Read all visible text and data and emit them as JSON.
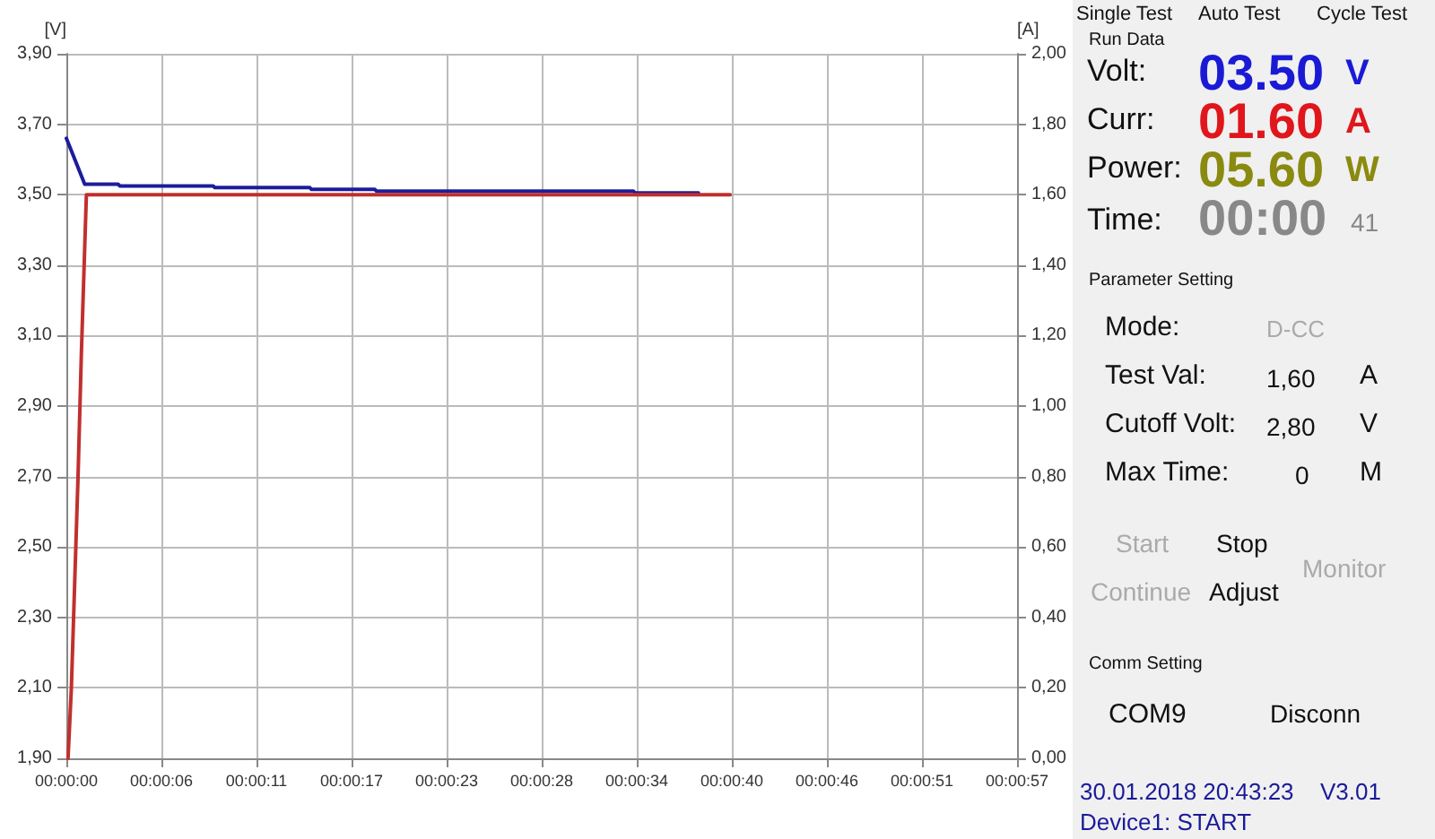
{
  "chart_data": [
    {
      "type": "line",
      "ylabel": "[V]",
      "y2label": "[A]",
      "xlim": [
        0,
        57
      ],
      "xticks": [
        {
          "value": 0,
          "label": "00:00:00"
        },
        {
          "value": 5.7,
          "label": "00:00:06"
        },
        {
          "value": 11.4,
          "label": "00:00:11"
        },
        {
          "value": 17.1,
          "label": "00:00:17"
        },
        {
          "value": 22.8,
          "label": "00:00:23"
        },
        {
          "value": 28.5,
          "label": "00:00:28"
        },
        {
          "value": 34.2,
          "label": "00:00:34"
        },
        {
          "value": 39.9,
          "label": "00:00:40"
        },
        {
          "value": 45.6,
          "label": "00:00:46"
        },
        {
          "value": 51.3,
          "label": "00:00:51"
        },
        {
          "value": 57,
          "label": "00:00:57"
        }
      ],
      "ylim": [
        1.9,
        3.9
      ],
      "yticks": [
        {
          "value": 1.9,
          "label": "1,90"
        },
        {
          "value": 2.1,
          "label": "2,10"
        },
        {
          "value": 2.3,
          "label": "2,30"
        },
        {
          "value": 2.5,
          "label": "2,50"
        },
        {
          "value": 2.7,
          "label": "2,70"
        },
        {
          "value": 2.9,
          "label": "2,90"
        },
        {
          "value": 3.1,
          "label": "3,10"
        },
        {
          "value": 3.3,
          "label": "3,30"
        },
        {
          "value": 3.5,
          "label": "3,50"
        },
        {
          "value": 3.7,
          "label": "3,70"
        },
        {
          "value": 3.9,
          "label": "3,90"
        }
      ],
      "y2lim": [
        0,
        2
      ],
      "y2ticks": [
        {
          "value": 0,
          "label": "0,00"
        },
        {
          "value": 0.2,
          "label": "0,20"
        },
        {
          "value": 0.4,
          "label": "0,40"
        },
        {
          "value": 0.6,
          "label": "0,60"
        },
        {
          "value": 0.8,
          "label": "0,80"
        },
        {
          "value": 1,
          "label": "1,00"
        },
        {
          "value": 1.2,
          "label": "1,20"
        },
        {
          "value": 1.4,
          "label": "1,40"
        },
        {
          "value": 1.6,
          "label": "1,60"
        },
        {
          "value": 1.8,
          "label": "1,80"
        },
        {
          "value": 2,
          "label": "2,00"
        }
      ],
      "grid": true,
      "marker": "none",
      "series": [
        {
          "color": "#1c1c9c",
          "x": [
            0,
            1.1,
            3.1,
            3.2,
            8.8,
            8.9,
            14.6,
            14.7,
            18.5,
            18.6,
            34.0,
            34.1,
            37.9
          ],
          "values": [
            3.66,
            3.53,
            3.53,
            3.525,
            3.525,
            3.52,
            3.52,
            3.515,
            3.515,
            3.51,
            3.51,
            3.505,
            3.505
          ]
        },
        {
          "color": "#c0302e",
          "axis": "y2",
          "x": [
            0.1,
            0.3,
            0.5,
            0.7,
            0.9,
            1.1,
            1.2,
            39.8
          ],
          "values": [
            0,
            0.2,
            0.5,
            0.8,
            1.15,
            1.45,
            1.6,
            1.6
          ]
        }
      ]
    },
    {
      "type": "other",
      "annotations": [
        "Single Test",
        "Auto Test",
        "Cycle Test",
        "Run Data",
        "Volt:",
        "03.50",
        "V",
        "Curr:",
        "01.60",
        "A",
        "Power:",
        "05.60",
        "W",
        "Time:",
        "00:00",
        "41",
        "Parameter Setting",
        "Mode:",
        "D-CC",
        "Test Val:",
        "1,60",
        "A",
        "Cutoff Volt:",
        "2,80",
        "V",
        "Max Time:",
        "0",
        "M",
        "Start",
        "Stop",
        "Continue",
        "Adjust",
        "Monitor",
        "Comm Setting",
        "COM9",
        "Disconn",
        "30.01.2018 20:43:23",
        "V3.01",
        "Device1: START"
      ]
    }
  ]
}
